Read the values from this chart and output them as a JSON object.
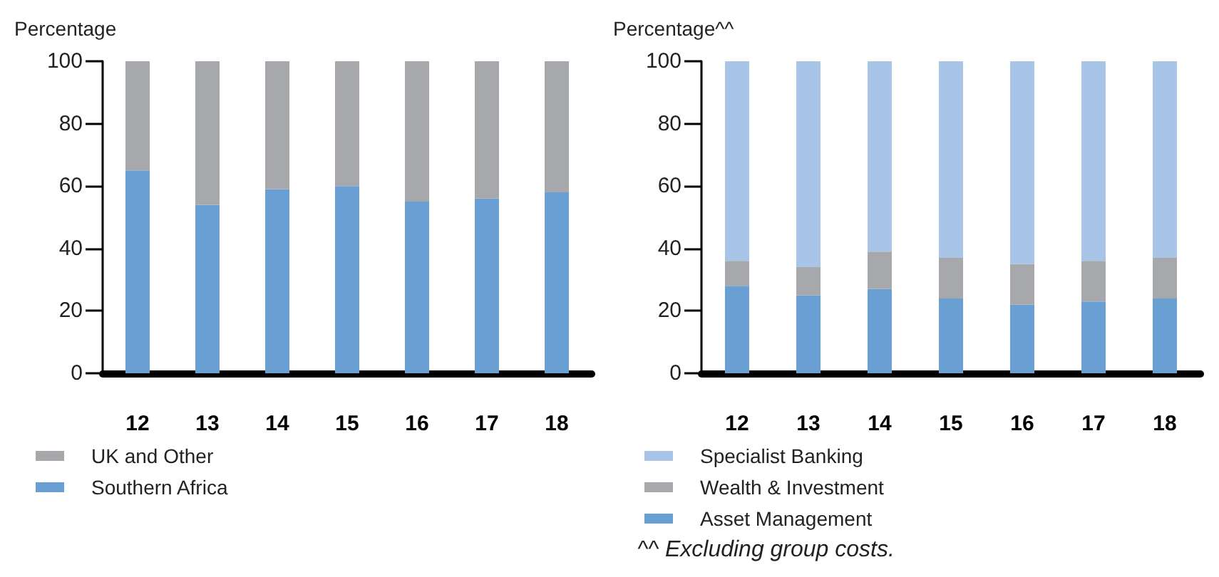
{
  "chart_data": [
    {
      "type": "bar",
      "ylabel": "Percentage",
      "categories": [
        "12",
        "13",
        "14",
        "15",
        "16",
        "17",
        "18"
      ],
      "stacked": true,
      "legend": "bottom left",
      "ylim": [
        0,
        100
      ],
      "yticks": [
        0,
        20,
        40,
        60,
        80,
        100
      ],
      "series": [
        {
          "name": "Southern Africa",
          "color": "#6a9fd4",
          "values": [
            65,
            54,
            59,
            60,
            55,
            56,
            58
          ]
        },
        {
          "name": "UK and Other",
          "color": "#a7a8ab",
          "values": [
            35,
            46,
            41,
            40,
            45,
            44,
            42
          ]
        }
      ]
    },
    {
      "type": "bar",
      "ylabel": "Percentage^^",
      "categories": [
        "12",
        "13",
        "14",
        "15",
        "16",
        "17",
        "18"
      ],
      "stacked": true,
      "legend": "bottom left",
      "ylim": [
        0,
        100
      ],
      "yticks": [
        0,
        20,
        40,
        60,
        80,
        100
      ],
      "annotations": [
        "^^ Excluding group costs."
      ],
      "series": [
        {
          "name": "Asset Management",
          "color": "#6a9fd4",
          "values": [
            28,
            25,
            27,
            24,
            22,
            23,
            24
          ]
        },
        {
          "name": "Wealth & Investment",
          "color": "#a7a8ab",
          "values": [
            8,
            9,
            12,
            13,
            13,
            13,
            13
          ]
        },
        {
          "name": "Specialist Banking",
          "color": "#a8c4e6",
          "values": [
            64,
            66,
            61,
            63,
            65,
            64,
            63
          ]
        }
      ]
    }
  ]
}
